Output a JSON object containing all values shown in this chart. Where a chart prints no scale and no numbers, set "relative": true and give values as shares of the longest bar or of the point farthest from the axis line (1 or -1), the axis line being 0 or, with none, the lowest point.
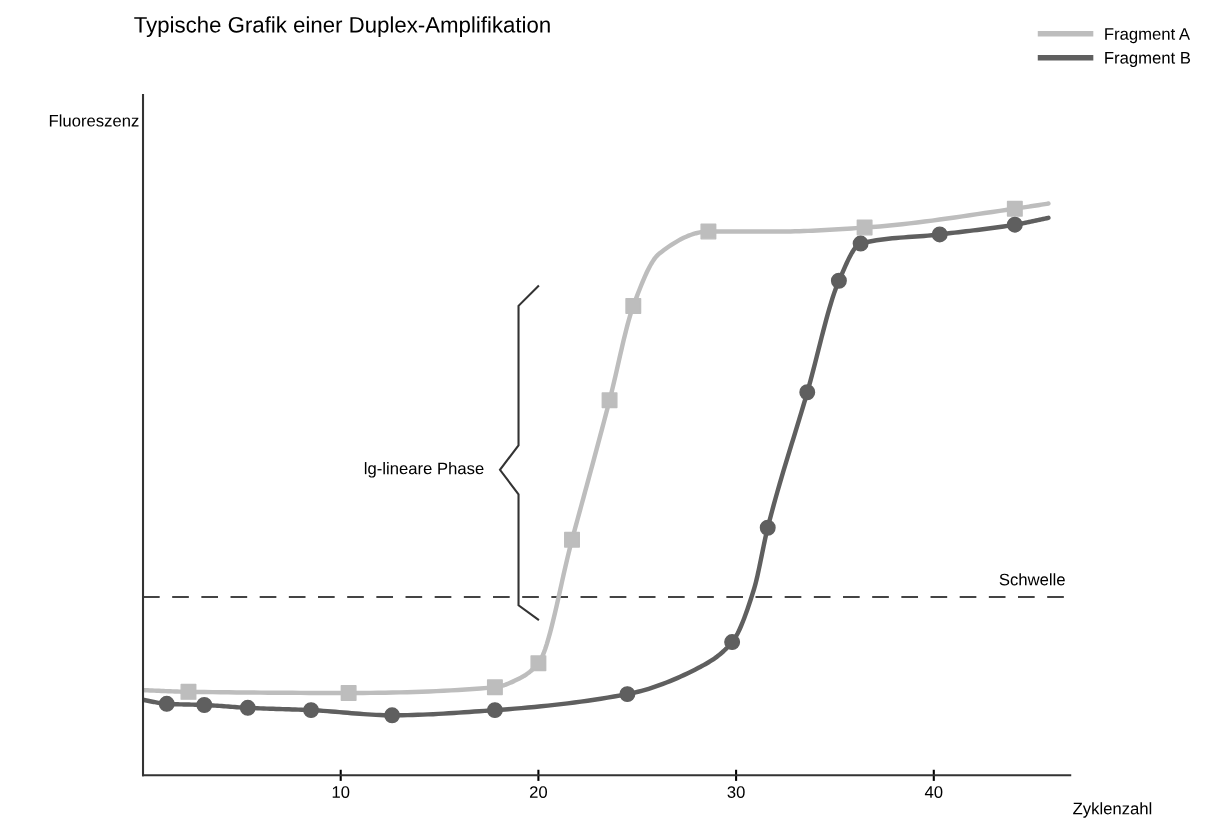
{
  "chart_data": {
    "type": "line",
    "title": "Typische Grafik einer Duplex-Amplifikation",
    "xlabel": "Zyklenzahl",
    "ylabel": "Fluoreszenz",
    "relative": true,
    "xlim": [
      0,
      46.9
    ],
    "xticks": [
      10,
      20,
      30,
      40
    ],
    "grid": false,
    "legend": "top right",
    "line_style": "solid",
    "series": [
      {
        "name": "Fragment A",
        "color": "#bdbdbd",
        "marker": "none",
        "x": [
          0,
          2.3,
          10.4,
          17.8,
          18.9,
          20.0,
          21.7,
          23.6,
          24.8,
          26.1,
          28.6,
          32.1,
          36.5,
          44.1,
          45.8
        ],
        "values": [
          0.149,
          0.146,
          0.144,
          0.154,
          0.167,
          0.196,
          0.412,
          0.656,
          0.821,
          0.912,
          0.951,
          0.951,
          0.958,
          0.991,
          1.0
        ]
      },
      {
        "name": "Fragment B",
        "color": "#5f5f5f",
        "marker": "none",
        "x": [
          0,
          1.2,
          3.1,
          5.3,
          8.5,
          12.6,
          17.8,
          24.5,
          28.1,
          29.8,
          30.9,
          31.6,
          33.6,
          35.2,
          36.3,
          40.3,
          44.1,
          45.8
        ],
        "values": [
          0.132,
          0.125,
          0.123,
          0.118,
          0.114,
          0.105,
          0.114,
          0.142,
          0.188,
          0.233,
          0.325,
          0.433,
          0.67,
          0.865,
          0.93,
          0.946,
          0.963,
          0.975
        ]
      },
      {
        "type": "scatter",
        "color": "#bdbdbd",
        "marker": "square",
        "x": [
          2.3,
          10.4,
          17.8,
          20.0,
          21.7,
          23.6,
          24.8,
          28.6,
          36.5,
          44.1
        ],
        "values": [
          0.146,
          0.144,
          0.154,
          0.196,
          0.412,
          0.656,
          0.821,
          0.951,
          0.958,
          0.991
        ]
      },
      {
        "type": "scatter",
        "color": "#5f5f5f",
        "marker": "circle",
        "x": [
          1.2,
          3.1,
          5.3,
          8.5,
          12.6,
          17.8,
          24.5,
          29.8,
          31.6,
          33.6,
          35.2,
          36.3,
          40.3,
          44.1
        ],
        "values": [
          0.125,
          0.123,
          0.118,
          0.114,
          0.105,
          0.114,
          0.142,
          0.233,
          0.433,
          0.67,
          0.865,
          0.93,
          0.946,
          0.963
        ]
      }
    ],
    "ref_lines": [
      {
        "axis": "y",
        "value": 0.312,
        "label": "Schwelle",
        "color": "#444444",
        "line_style": "dashed"
      }
    ],
    "annotations": [
      "lg-lineare Phase"
    ]
  }
}
